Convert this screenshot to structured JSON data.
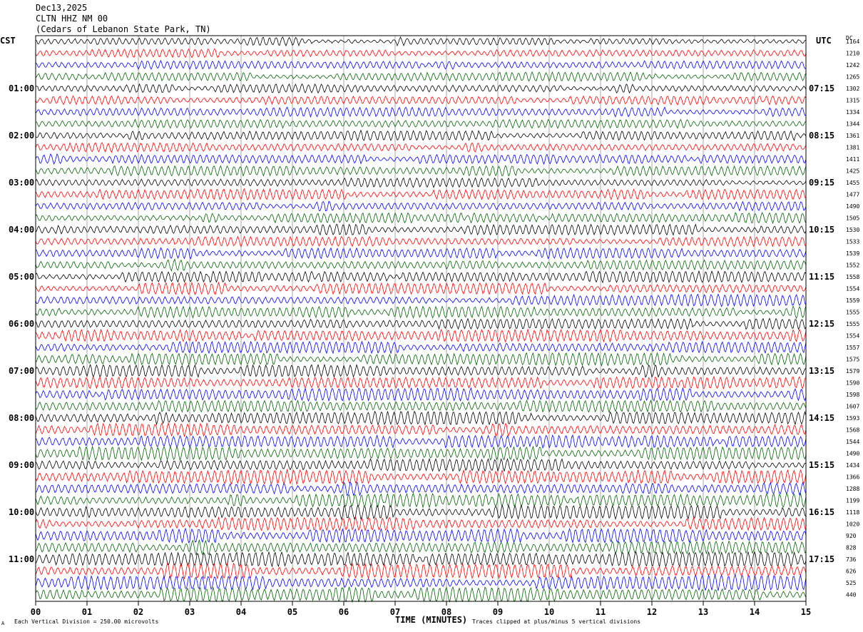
{
  "header": {
    "date": "Dec13,2025",
    "station": "CLTN HHZ NM 00",
    "location": "(Cedars of Lebanon State Park, TN)"
  },
  "labels": {
    "left_timezone": "CST",
    "right_timezone": "UTC",
    "dc_label": "DC"
  },
  "footer": {
    "scale_text": "Each Vertical Division =  250.00 microvolts",
    "axis_title": "TIME (MINUTES)",
    "clip_text": "Traces clipped at plus/minus 5 vertical divisions",
    "corner_mark": "A"
  },
  "colors": {
    "trace_cycle": [
      "#000000",
      "#ff0000",
      "#0000ff",
      "#006400"
    ],
    "grid": "#aaaaaa",
    "frame": "#000000"
  },
  "chart_data": {
    "type": "line",
    "subtype": "helicorder",
    "x_axis": {
      "title": "TIME (MINUTES)",
      "range": [
        0,
        15
      ],
      "ticks": [
        "00",
        "01",
        "02",
        "03",
        "04",
        "05",
        "06",
        "07",
        "08",
        "09",
        "10",
        "11",
        "12",
        "13",
        "14",
        "15"
      ]
    },
    "minutes_per_trace": 15,
    "trace_count": 48,
    "left_hour_labels": [
      "01:00",
      "02:00",
      "03:00",
      "04:00",
      "05:00",
      "06:00",
      "07:00",
      "08:00",
      "09:00",
      "10:00",
      "11:00"
    ],
    "right_hour_labels": [
      "07:15",
      "08:15",
      "09:15",
      "10:15",
      "11:15",
      "12:15",
      "13:15",
      "14:15",
      "15:15",
      "16:15",
      "17:15"
    ],
    "dc_offsets": [
      1164,
      1210,
      1242,
      1265,
      1302,
      1315,
      1334,
      1344,
      1361,
      1381,
      1411,
      1425,
      1455,
      1477,
      1490,
      1505,
      1530,
      1533,
      1539,
      1552,
      1558,
      1554,
      1559,
      1555,
      1555,
      1554,
      1557,
      1575,
      1579,
      1590,
      1598,
      1607,
      1593,
      1568,
      1544,
      1490,
      1434,
      1366,
      1288,
      1199,
      1118,
      1020,
      920,
      828,
      736,
      626,
      525,
      440
    ],
    "amplitude_scale": "250.00 microvolts per vertical division",
    "clipping": "plus/minus 5 vertical divisions"
  }
}
